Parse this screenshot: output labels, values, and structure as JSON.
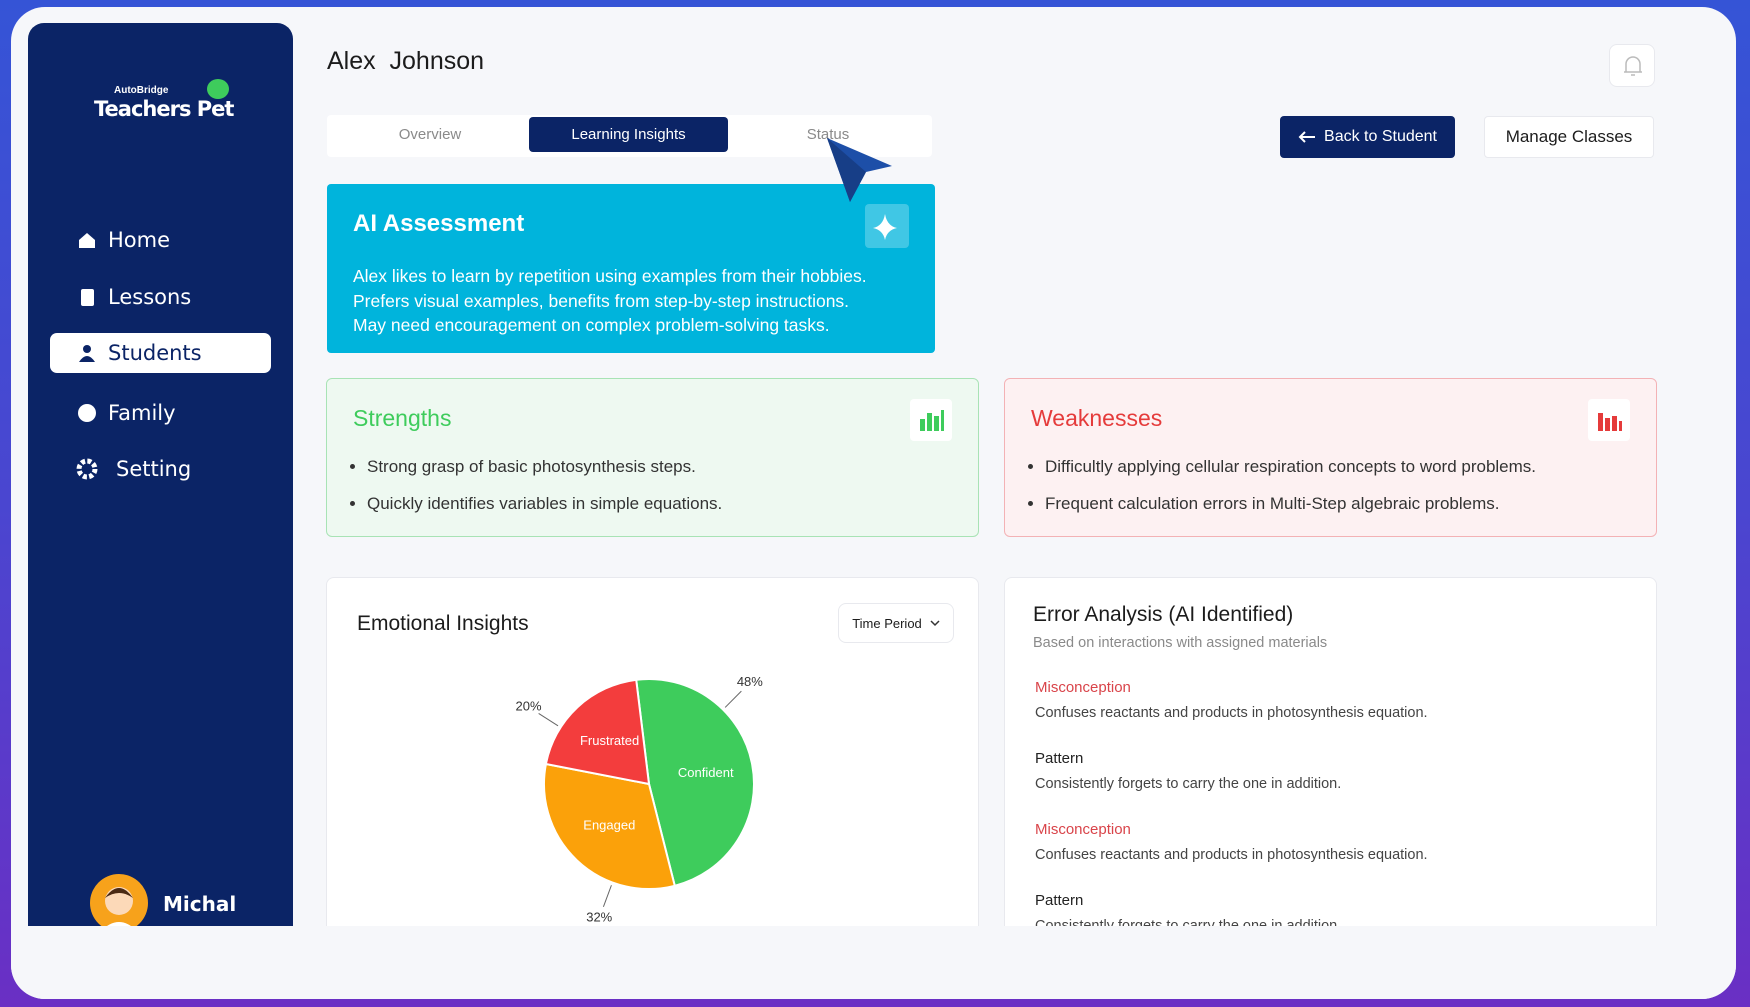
{
  "sidebar": {
    "logo": {
      "brand": "AutoBridge",
      "name": "Teachers Pet"
    },
    "nav": [
      "Home",
      "Lessons",
      "Students",
      "Family",
      "Setting"
    ],
    "user": "Michal"
  },
  "header": {
    "title": "Alex  Johnson",
    "tabs": [
      "Overview",
      "Learning Insights",
      "Status"
    ],
    "buttons": [
      "Back to Student",
      "Manage Classes"
    ]
  },
  "ai_assessment": {
    "title": "AI Assessment",
    "lines": [
      "Alex likes to learn by repetition using examples from their hobbies.",
      "Prefers visual examples, benefits from step-by-step instructions.",
      "May need encouragement on complex problem-solving tasks."
    ]
  },
  "strengths": {
    "title": "Strengths",
    "items": [
      "Strong grasp of basic photosynthesis steps.",
      "Quickly identifies variables in simple equations."
    ]
  },
  "weaknesses": {
    "title": "Weaknesses",
    "items": [
      "Difficultly applying cellular respiration concepts to word problems.",
      "Frequent calculation errors in Multi-Step algebraic problems."
    ]
  },
  "emotional_insights": {
    "title": "Emotional Insights",
    "filter": "Time Period",
    "chart": {
      "type": "pie",
      "categories": [
        "Confident",
        "Engaged",
        "Frustrated"
      ],
      "values": [
        48,
        32,
        20
      ],
      "value_labels": [
        "48%",
        "32%",
        "20%"
      ],
      "colors": [
        "#3ecc5c",
        "#fba10a",
        "#f33d3d"
      ]
    }
  },
  "error_analysis": {
    "title": "Error Analysis (AI Identified)",
    "subtitle": "Based on interactions with assigned materials",
    "items": [
      {
        "type": "Misconception",
        "text": "Confuses reactants and products in photosynthesis equation."
      },
      {
        "type": "Pattern",
        "text": "Consistently forgets to carry the one in addition."
      },
      {
        "type": "Misconception",
        "text": "Confuses reactants and products in photosynthesis equation."
      },
      {
        "type": "Pattern",
        "text": "Consistently forgets to carry the one in addition."
      }
    ]
  }
}
